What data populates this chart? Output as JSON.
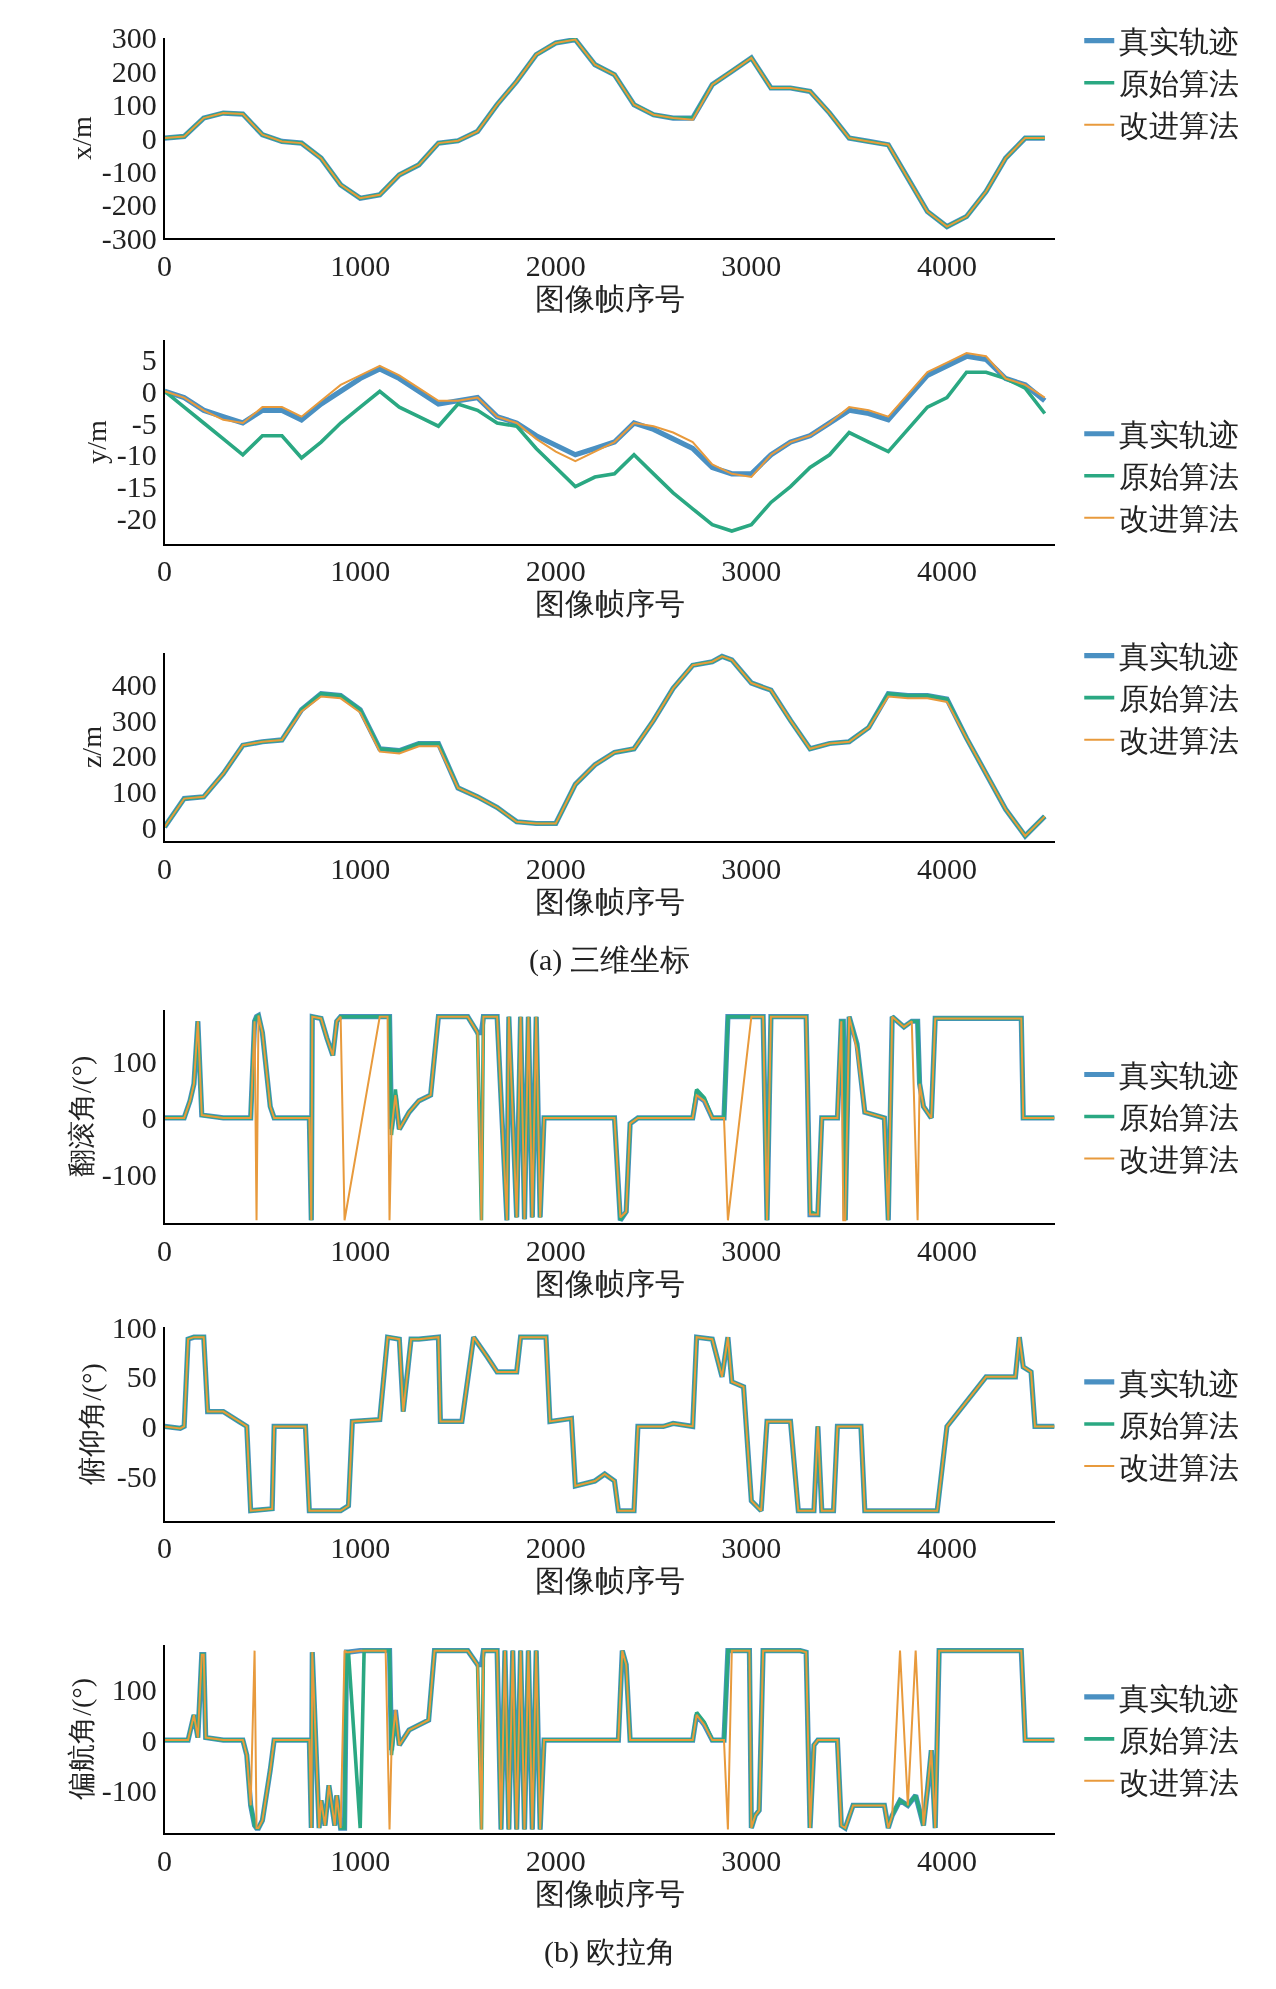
{
  "chart_data": [
    {
      "type": "line",
      "xlabel": "图像帧序号",
      "ylabel": "x/m",
      "xlim": [
        0,
        4550
      ],
      "xticks": [
        0,
        1000,
        2000,
        3000,
        4000
      ],
      "ylim": [
        -300,
        300
      ],
      "yticks": [
        -300,
        -200,
        -100,
        0,
        100,
        200,
        300
      ],
      "legend": "top right",
      "x": [
        0,
        100,
        200,
        300,
        400,
        500,
        600,
        700,
        800,
        900,
        1000,
        1100,
        1200,
        1300,
        1400,
        1500,
        1600,
        1700,
        1800,
        1900,
        2000,
        2100,
        2200,
        2300,
        2400,
        2500,
        2600,
        2700,
        2800,
        2900,
        3000,
        3100,
        3200,
        3300,
        3400,
        3500,
        3600,
        3700,
        3800,
        3900,
        4000,
        4100,
        4200,
        4300,
        4400,
        4500
      ],
      "series": [
        {
          "name": "真实轨迹",
          "color": "#4a90c2",
          "values": [
            0,
            5,
            60,
            75,
            72,
            10,
            -10,
            -15,
            -60,
            -140,
            -180,
            -170,
            -110,
            -80,
            -15,
            -8,
            20,
            100,
            170,
            250,
            285,
            295,
            220,
            190,
            100,
            70,
            60,
            60,
            160,
            200,
            240,
            150,
            150,
            140,
            75,
            0,
            -10,
            -20,
            -120,
            -220,
            -265,
            -235,
            -160,
            -60,
            0,
            0
          ]
        },
        {
          "name": "原始算法",
          "color": "#2aa882",
          "values": [
            0,
            5,
            60,
            75,
            72,
            10,
            -10,
            -15,
            -60,
            -140,
            -180,
            -170,
            -110,
            -80,
            -15,
            -8,
            20,
            100,
            170,
            250,
            285,
            295,
            220,
            190,
            100,
            70,
            60,
            60,
            160,
            200,
            240,
            150,
            150,
            140,
            75,
            0,
            -10,
            -20,
            -120,
            -220,
            -265,
            -235,
            -160,
            -60,
            0,
            0
          ]
        },
        {
          "name": "改进算法",
          "color": "#e89a3c",
          "values": [
            0,
            5,
            60,
            75,
            72,
            10,
            -10,
            -15,
            -60,
            -140,
            -180,
            -170,
            -110,
            -80,
            -15,
            -8,
            20,
            100,
            170,
            250,
            285,
            295,
            220,
            190,
            100,
            70,
            60,
            55,
            160,
            200,
            240,
            150,
            150,
            140,
            75,
            0,
            -10,
            -20,
            -120,
            -220,
            -265,
            -235,
            -160,
            -60,
            0,
            0
          ]
        }
      ]
    },
    {
      "type": "line",
      "xlabel": "图像帧序号",
      "ylabel": "y/m",
      "xlim": [
        0,
        4550
      ],
      "xticks": [
        0,
        1000,
        2000,
        3000,
        4000
      ],
      "ylim": [
        -24,
        8
      ],
      "yticks": [
        -20,
        -15,
        -10,
        -5,
        0,
        5
      ],
      "legend": "bottom right",
      "x": [
        0,
        100,
        200,
        300,
        400,
        500,
        600,
        700,
        800,
        900,
        1000,
        1100,
        1200,
        1300,
        1400,
        1500,
        1600,
        1700,
        1800,
        1900,
        2000,
        2100,
        2200,
        2300,
        2400,
        2500,
        2600,
        2700,
        2800,
        2900,
        3000,
        3100,
        3200,
        3300,
        3400,
        3500,
        3600,
        3700,
        3800,
        3900,
        4000,
        4100,
        4200,
        4300,
        4400,
        4500
      ],
      "series": [
        {
          "name": "真实轨迹",
          "color": "#4a90c2",
          "values": [
            0,
            -1,
            -3,
            -4,
            -5,
            -3,
            -3,
            -4.5,
            -2,
            0,
            2,
            3.5,
            2,
            0,
            -2,
            -1.5,
            -1,
            -4,
            -5,
            -7,
            -8.5,
            -10,
            -9,
            -8,
            -5,
            -6,
            -7.5,
            -9,
            -12,
            -13,
            -13,
            -10,
            -8,
            -7,
            -5,
            -3,
            -3.5,
            -4.5,
            -1,
            2.5,
            4,
            5.5,
            5,
            2,
            1,
            -1.5
          ]
        },
        {
          "name": "原始算法",
          "color": "#2aa882",
          "values": [
            0,
            -2.5,
            -5,
            -7.5,
            -10,
            -7,
            -7,
            -10.5,
            -8,
            -5,
            -2.5,
            0,
            -2.5,
            -4,
            -5.5,
            -2,
            -3,
            -5,
            -5.5,
            -9,
            -12,
            -15,
            -13.5,
            -13,
            -10,
            -13,
            -16,
            -18.5,
            -21,
            -22,
            -21,
            -17.5,
            -15,
            -12,
            -10,
            -6.5,
            -8,
            -9.5,
            -6,
            -2.5,
            -1,
            3,
            3,
            2,
            0.5,
            -3.5
          ]
        },
        {
          "name": "改进算法",
          "color": "#e89a3c",
          "values": [
            0,
            -1,
            -3,
            -4.5,
            -5,
            -2.5,
            -2.5,
            -4,
            -1.5,
            1,
            2.5,
            4,
            2.5,
            0.5,
            -1.5,
            -1.5,
            -1,
            -4,
            -5,
            -7.5,
            -9.5,
            -11,
            -9.5,
            -8,
            -5,
            -5.5,
            -6.5,
            -8,
            -11.5,
            -13,
            -13.5,
            -10,
            -8,
            -7,
            -5,
            -2.5,
            -3,
            -4,
            -0.5,
            3,
            4.5,
            6,
            5.5,
            2,
            1,
            -1
          ]
        }
      ]
    },
    {
      "type": "line",
      "xlabel": "图像帧序号",
      "ylabel": "z/m",
      "xlim": [
        0,
        4550
      ],
      "xticks": [
        0,
        1000,
        2000,
        3000,
        4000
      ],
      "ylim": [
        -40,
        490
      ],
      "yticks": [
        0,
        100,
        200,
        300,
        400
      ],
      "legend": "top right",
      "annotations": [
        "(a) 三维坐标"
      ],
      "x": [
        0,
        100,
        200,
        300,
        400,
        500,
        600,
        700,
        800,
        900,
        1000,
        1100,
        1200,
        1300,
        1400,
        1500,
        1600,
        1700,
        1800,
        1900,
        2000,
        2100,
        2200,
        2300,
        2400,
        2500,
        2600,
        2700,
        2800,
        2850,
        2900,
        3000,
        3100,
        3200,
        3300,
        3400,
        3500,
        3600,
        3700,
        3800,
        3900,
        4000,
        4100,
        4200,
        4300,
        4400,
        4500
      ],
      "series": [
        {
          "name": "真实轨迹",
          "color": "#4a90c2",
          "values": [
            0,
            80,
            85,
            150,
            230,
            240,
            245,
            330,
            375,
            370,
            330,
            220,
            215,
            235,
            235,
            110,
            85,
            55,
            15,
            10,
            10,
            120,
            175,
            210,
            220,
            300,
            390,
            455,
            465,
            480,
            470,
            405,
            385,
            300,
            220,
            235,
            240,
            280,
            375,
            370,
            370,
            360,
            250,
            150,
            50,
            -25,
            30
          ]
        },
        {
          "name": "原始算法",
          "color": "#2aa882",
          "values": [
            0,
            80,
            85,
            150,
            230,
            240,
            245,
            330,
            375,
            370,
            330,
            220,
            215,
            235,
            235,
            110,
            85,
            55,
            15,
            10,
            10,
            120,
            175,
            210,
            220,
            300,
            390,
            455,
            465,
            480,
            470,
            405,
            385,
            300,
            220,
            235,
            240,
            280,
            375,
            370,
            370,
            360,
            250,
            150,
            50,
            -25,
            30
          ]
        },
        {
          "name": "改进算法",
          "color": "#e89a3c",
          "values": [
            0,
            80,
            85,
            150,
            230,
            240,
            245,
            325,
            367,
            362,
            322,
            212,
            207,
            227,
            227,
            110,
            85,
            55,
            15,
            10,
            10,
            120,
            175,
            210,
            220,
            300,
            390,
            455,
            465,
            480,
            470,
            405,
            385,
            300,
            220,
            235,
            240,
            280,
            367,
            362,
            362,
            352,
            250,
            150,
            50,
            -25,
            30
          ]
        }
      ]
    },
    {
      "type": "line",
      "xlabel": "图像帧序号",
      "ylabel": "翻滚角/(°)",
      "xlim": [
        0,
        4550
      ],
      "xticks": [
        0,
        1000,
        2000,
        3000,
        4000
      ],
      "ylim": [
        -185,
        190
      ],
      "yticks": [
        -100,
        0,
        100
      ],
      "legend": "right",
      "x": [
        0,
        100,
        130,
        150,
        170,
        190,
        300,
        440,
        460,
        470,
        480,
        500,
        540,
        560,
        740,
        750,
        755,
        800,
        830,
        860,
        880,
        900,
        920,
        1100,
        1140,
        1150,
        1160,
        1180,
        1200,
        1250,
        1300,
        1360,
        1400,
        1550,
        1600,
        1620,
        1630,
        1700,
        1750,
        1760,
        1800,
        1820,
        1840,
        1860,
        1880,
        1900,
        1920,
        1940,
        2300,
        2330,
        2360,
        2380,
        2420,
        2700,
        2720,
        2760,
        2800,
        2860,
        2880,
        3000,
        3060,
        3080,
        3100,
        3200,
        3280,
        3300,
        3340,
        3360,
        3440,
        3460,
        3470,
        3480,
        3500,
        3540,
        3580,
        3680,
        3700,
        3720,
        3780,
        3820,
        3850,
        3860,
        3880,
        3920,
        3940,
        4380,
        4390,
        4550
      ],
      "series": [
        {
          "name": "真实轨迹",
          "color": "#4a90c2",
          "values": [
            0,
            0,
            30,
            60,
            170,
            5,
            0,
            0,
            170,
            178,
            180,
            150,
            20,
            0,
            0,
            -180,
            178,
            175,
            140,
            110,
            170,
            178,
            178,
            178,
            178,
            178,
            -20,
            40,
            -20,
            10,
            30,
            40,
            178,
            178,
            150,
            150,
            178,
            178,
            -180,
            178,
            -175,
            178,
            -178,
            178,
            -175,
            178,
            -175,
            0,
            0,
            -180,
            -165,
            -10,
            0,
            0,
            40,
            30,
            0,
            0,
            178,
            178,
            178,
            -180,
            178,
            178,
            178,
            -170,
            -170,
            0,
            0,
            170,
            170,
            -180,
            178,
            130,
            10,
            0,
            -180,
            178,
            160,
            170,
            170,
            60,
            20,
            0,
            175,
            175,
            0,
            0
          ]
        },
        {
          "name": "原始算法",
          "color": "#2aa882",
          "values": [
            0,
            0,
            30,
            60,
            170,
            5,
            0,
            0,
            170,
            178,
            180,
            150,
            20,
            0,
            0,
            -180,
            178,
            175,
            140,
            110,
            170,
            178,
            178,
            178,
            178,
            178,
            -30,
            50,
            -20,
            10,
            30,
            40,
            178,
            178,
            150,
            -180,
            178,
            178,
            -180,
            178,
            -175,
            178,
            -178,
            178,
            -175,
            178,
            -175,
            0,
            0,
            -180,
            -165,
            -10,
            0,
            0,
            50,
            35,
            0,
            0,
            178,
            178,
            178,
            -180,
            178,
            178,
            178,
            -165,
            -170,
            0,
            0,
            170,
            170,
            -180,
            178,
            130,
            10,
            0,
            -180,
            178,
            160,
            170,
            170,
            60,
            20,
            0,
            175,
            175,
            0,
            0
          ]
        },
        {
          "name": "改进算法",
          "color": "#e89a3c",
          "values": [
            0,
            0,
            30,
            60,
            170,
            5,
            0,
            0,
            170,
            -180,
            180,
            150,
            20,
            0,
            0,
            -180,
            178,
            175,
            140,
            110,
            170,
            178,
            -180,
            178,
            178,
            -180,
            -20,
            40,
            -20,
            10,
            30,
            40,
            178,
            178,
            150,
            -180,
            178,
            178,
            -180,
            178,
            -175,
            178,
            -178,
            178,
            -175,
            178,
            -175,
            0,
            0,
            -175,
            -165,
            -10,
            0,
            0,
            40,
            30,
            0,
            0,
            -180,
            178,
            178,
            -180,
            178,
            178,
            178,
            -170,
            -170,
            0,
            0,
            170,
            -180,
            -180,
            178,
            120,
            10,
            0,
            -180,
            178,
            160,
            170,
            -180,
            60,
            20,
            0,
            175,
            175,
            0,
            0
          ]
        }
      ]
    },
    {
      "type": "line",
      "xlabel": "图像帧序号",
      "ylabel": "俯仰角/(°)",
      "xlim": [
        0,
        4550
      ],
      "xticks": [
        0,
        1000,
        2000,
        3000,
        4000
      ],
      "ylim": [
        -95,
        100
      ],
      "yticks": [
        -50,
        0,
        50,
        100
      ],
      "legend": "right",
      "x": [
        0,
        80,
        100,
        120,
        150,
        200,
        220,
        300,
        380,
        420,
        440,
        550,
        560,
        700,
        720,
        740,
        900,
        940,
        960,
        1100,
        1140,
        1200,
        1220,
        1260,
        1300,
        1400,
        1410,
        1520,
        1580,
        1650,
        1700,
        1800,
        1820,
        1950,
        1970,
        2080,
        2100,
        2200,
        2250,
        2300,
        2320,
        2400,
        2420,
        2550,
        2600,
        2700,
        2720,
        2800,
        2850,
        2880,
        2900,
        2960,
        3000,
        3050,
        3080,
        3200,
        3240,
        3320,
        3340,
        3360,
        3420,
        3440,
        3560,
        3580,
        3700,
        3800,
        3900,
        3950,
        4000,
        4200,
        4350,
        4370,
        4390,
        4430,
        4450,
        4550
      ],
      "series": [
        {
          "name": "真实轨迹",
          "color": "#4a90c2",
          "values": [
            0,
            -2,
            0,
            88,
            90,
            90,
            15,
            15,
            5,
            0,
            -85,
            -83,
            0,
            0,
            0,
            -85,
            -85,
            -80,
            5,
            7,
            90,
            88,
            15,
            88,
            88,
            90,
            5,
            5,
            90,
            70,
            55,
            55,
            90,
            90,
            5,
            8,
            -60,
            -55,
            -48,
            -55,
            -85,
            -85,
            0,
            0,
            3,
            0,
            90,
            88,
            50,
            90,
            45,
            40,
            -75,
            -85,
            5,
            5,
            -85,
            -85,
            0,
            -85,
            -85,
            0,
            0,
            -85,
            -85,
            -85,
            -85,
            -85,
            0,
            50,
            50,
            90,
            60,
            55,
            0,
            0
          ]
        },
        {
          "name": "原始算法",
          "color": "#2aa882",
          "values": [
            0,
            -2,
            0,
            88,
            90,
            90,
            15,
            15,
            5,
            0,
            -85,
            -83,
            0,
            0,
            0,
            -85,
            -85,
            -80,
            5,
            7,
            90,
            88,
            15,
            88,
            88,
            90,
            5,
            5,
            90,
            70,
            55,
            55,
            90,
            90,
            5,
            8,
            -60,
            -55,
            -48,
            -55,
            -85,
            -85,
            0,
            0,
            3,
            0,
            90,
            88,
            50,
            90,
            45,
            40,
            -75,
            -85,
            5,
            5,
            -85,
            -85,
            0,
            -85,
            -85,
            0,
            0,
            -85,
            -85,
            -85,
            -85,
            -85,
            0,
            50,
            50,
            90,
            60,
            55,
            0,
            0
          ]
        },
        {
          "name": "改进算法",
          "color": "#e89a3c",
          "values": [
            0,
            -2,
            0,
            88,
            90,
            90,
            15,
            15,
            5,
            0,
            -85,
            -83,
            0,
            0,
            0,
            -85,
            -85,
            -80,
            5,
            7,
            90,
            88,
            15,
            88,
            88,
            90,
            5,
            5,
            90,
            70,
            55,
            55,
            90,
            90,
            5,
            8,
            -60,
            -55,
            -48,
            -55,
            -85,
            -85,
            0,
            0,
            3,
            0,
            90,
            88,
            50,
            90,
            45,
            40,
            -75,
            -85,
            5,
            5,
            -85,
            -85,
            0,
            -85,
            -85,
            0,
            0,
            -85,
            -85,
            -85,
            -85,
            -85,
            0,
            50,
            50,
            90,
            60,
            55,
            0,
            0
          ]
        }
      ]
    },
    {
      "type": "line",
      "xlabel": "图像帧序号",
      "ylabel": "偏航角/(°)",
      "xlim": [
        0,
        4550
      ],
      "xticks": [
        0,
        1000,
        2000,
        3000,
        4000
      ],
      "ylim": [
        -185,
        190
      ],
      "yticks": [
        -100,
        0,
        100
      ],
      "legend": "right",
      "annotations": [
        "(b) 欧拉角"
      ],
      "x": [
        0,
        120,
        150,
        170,
        190,
        200,
        210,
        300,
        400,
        420,
        440,
        460,
        470,
        480,
        500,
        540,
        560,
        740,
        750,
        755,
        790,
        800,
        820,
        840,
        870,
        880,
        900,
        920,
        930,
        940,
        1000,
        1020,
        1040,
        1130,
        1150,
        1160,
        1180,
        1200,
        1250,
        1300,
        1350,
        1380,
        1550,
        1600,
        1620,
        1630,
        1700,
        1720,
        1740,
        1760,
        1780,
        1800,
        1820,
        1840,
        1860,
        1880,
        1900,
        1920,
        1940,
        2280,
        2320,
        2340,
        2360,
        2380,
        2420,
        2680,
        2700,
        2720,
        2760,
        2800,
        2860,
        2880,
        2900,
        2990,
        3000,
        3020,
        3040,
        3060,
        3100,
        3250,
        3280,
        3300,
        3320,
        3340,
        3440,
        3460,
        3480,
        3520,
        3680,
        3700,
        3720,
        3760,
        3800,
        3840,
        3880,
        3900,
        3920,
        3940,
        3960,
        4380,
        4400,
        4550
      ],
      "series": [
        {
          "name": "真实轨迹",
          "color": "#4a90c2",
          "values": [
            0,
            0,
            50,
            5,
            170,
            170,
            5,
            0,
            0,
            -30,
            -130,
            -170,
            -175,
            -175,
            -160,
            -60,
            0,
            0,
            -175,
            175,
            -175,
            -120,
            -170,
            -90,
            -170,
            -110,
            -175,
            -175,
            175,
            175,
            178,
            178,
            178,
            178,
            178,
            -20,
            60,
            -10,
            20,
            30,
            40,
            178,
            178,
            150,
            150,
            178,
            178,
            -178,
            178,
            -178,
            178,
            -178,
            178,
            -178,
            178,
            -178,
            178,
            -178,
            0,
            0,
            0,
            178,
            150,
            0,
            0,
            0,
            0,
            50,
            30,
            0,
            0,
            178,
            178,
            178,
            -175,
            -150,
            -140,
            178,
            178,
            178,
            175,
            -175,
            -10,
            0,
            0,
            -170,
            -175,
            -130,
            -130,
            -175,
            -150,
            -120,
            -130,
            -110,
            -170,
            -100,
            -20,
            -175,
            178,
            178,
            0,
            0
          ]
        },
        {
          "name": "原始算法",
          "color": "#2aa882",
          "values": [
            0,
            0,
            50,
            5,
            170,
            170,
            5,
            0,
            0,
            -30,
            -130,
            -170,
            -175,
            -175,
            -160,
            -60,
            0,
            0,
            -175,
            175,
            -175,
            -120,
            -170,
            -90,
            -170,
            -110,
            -175,
            -175,
            175,
            175,
            -175,
            178,
            178,
            178,
            178,
            -30,
            50,
            -10,
            20,
            30,
            40,
            178,
            178,
            150,
            -178,
            178,
            178,
            -178,
            178,
            -178,
            178,
            -178,
            178,
            -178,
            178,
            -178,
            178,
            -178,
            0,
            0,
            0,
            178,
            150,
            0,
            0,
            0,
            0,
            55,
            35,
            0,
            0,
            178,
            178,
            178,
            -175,
            -150,
            -140,
            178,
            178,
            178,
            175,
            -175,
            -10,
            0,
            0,
            -170,
            -175,
            -130,
            -130,
            -175,
            -150,
            -120,
            -130,
            -110,
            -170,
            -100,
            -20,
            -175,
            178,
            178,
            0,
            0
          ]
        },
        {
          "name": "改进算法",
          "color": "#e89a3c",
          "values": [
            0,
            0,
            50,
            5,
            170,
            170,
            5,
            0,
            0,
            -30,
            -130,
            178,
            -175,
            -175,
            -160,
            -60,
            0,
            0,
            -175,
            175,
            -175,
            -120,
            -170,
            -90,
            -170,
            -110,
            -175,
            178,
            175,
            175,
            178,
            178,
            178,
            178,
            -178,
            -20,
            60,
            -10,
            20,
            30,
            40,
            178,
            178,
            150,
            -178,
            178,
            178,
            -178,
            178,
            -178,
            178,
            -178,
            178,
            -178,
            178,
            -178,
            178,
            -178,
            0,
            0,
            0,
            178,
            150,
            0,
            0,
            0,
            0,
            50,
            30,
            0,
            0,
            -178,
            178,
            178,
            -175,
            -150,
            -140,
            178,
            178,
            178,
            175,
            -175,
            -10,
            0,
            0,
            -170,
            -175,
            -130,
            -130,
            -175,
            -150,
            178,
            -130,
            178,
            -170,
            -100,
            -20,
            -175,
            178,
            178,
            0,
            0
          ]
        }
      ]
    }
  ]
}
